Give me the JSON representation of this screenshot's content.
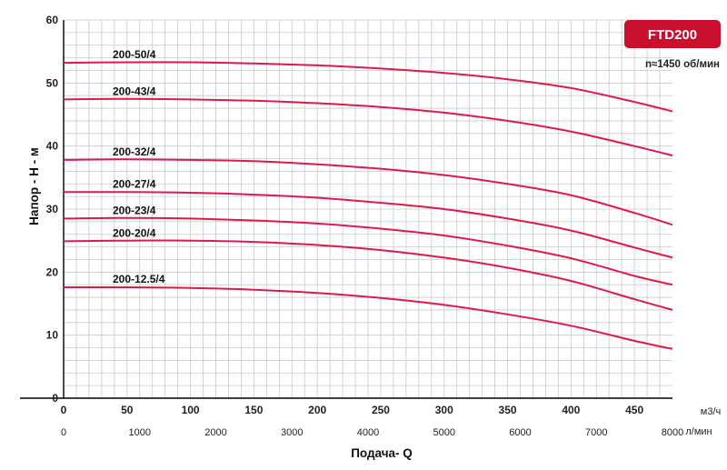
{
  "chart_data": {
    "type": "line",
    "model": "FTD200",
    "speed_note": "n≈1450 об/мин",
    "ylabel": "Напор - H - м",
    "xlabel": "Подача- Q",
    "x_unit_primary": "м3/ч",
    "x_unit_secondary": "л/мин",
    "xlim": [
      0,
      480
    ],
    "ylim": [
      0,
      60
    ],
    "x_ticks": [
      0,
      50,
      100,
      150,
      200,
      250,
      300,
      350,
      400,
      450
    ],
    "x_ticks_secondary": [
      0,
      1000,
      2000,
      3000,
      4000,
      5000,
      6000,
      7000,
      8000
    ],
    "y_ticks": [
      0,
      10,
      20,
      30,
      40,
      50,
      60
    ],
    "grid": true,
    "series": [
      {
        "name": "200-50/4",
        "x": [
          0,
          50,
          100,
          150,
          200,
          250,
          300,
          350,
          400,
          450,
          480
        ],
        "y": [
          53.2,
          53.3,
          53.3,
          53.1,
          52.8,
          52.3,
          51.6,
          50.6,
          49.2,
          47.0,
          45.5
        ]
      },
      {
        "name": "200-43/4",
        "x": [
          0,
          50,
          100,
          150,
          200,
          250,
          300,
          350,
          400,
          450,
          480
        ],
        "y": [
          47.4,
          47.5,
          47.4,
          47.2,
          46.8,
          46.2,
          45.3,
          44.0,
          42.3,
          40.0,
          38.5
        ]
      },
      {
        "name": "200-32/4",
        "x": [
          0,
          50,
          100,
          150,
          200,
          250,
          300,
          350,
          400,
          450,
          480
        ],
        "y": [
          37.8,
          37.9,
          37.8,
          37.6,
          37.1,
          36.4,
          35.4,
          34.0,
          32.2,
          29.4,
          27.5
        ]
      },
      {
        "name": "200-27/4",
        "x": [
          0,
          50,
          100,
          150,
          200,
          250,
          300,
          350,
          400,
          450,
          480
        ],
        "y": [
          32.7,
          32.7,
          32.6,
          32.3,
          31.8,
          31.0,
          30.0,
          28.5,
          26.6,
          23.9,
          22.3
        ]
      },
      {
        "name": "200-23/4",
        "x": [
          0,
          50,
          100,
          150,
          200,
          250,
          300,
          350,
          400,
          450,
          480
        ],
        "y": [
          28.5,
          28.6,
          28.5,
          28.2,
          27.7,
          26.9,
          25.8,
          24.2,
          22.2,
          19.4,
          18.0
        ]
      },
      {
        "name": "200-20/4",
        "x": [
          0,
          50,
          100,
          150,
          200,
          250,
          300,
          350,
          400,
          450,
          480
        ],
        "y": [
          24.9,
          25.0,
          25.0,
          24.8,
          24.3,
          23.5,
          22.3,
          20.7,
          18.6,
          15.7,
          14.0
        ]
      },
      {
        "name": "200-12.5/4",
        "x": [
          0,
          50,
          100,
          150,
          200,
          250,
          300,
          350,
          400,
          450,
          480
        ],
        "y": [
          17.6,
          17.6,
          17.5,
          17.2,
          16.7,
          15.9,
          14.8,
          13.3,
          11.5,
          9.1,
          7.8
        ]
      }
    ],
    "colors": {
      "curve": "#e0194b",
      "badge": "#c8102e",
      "grid": "#c9c9c9"
    }
  }
}
